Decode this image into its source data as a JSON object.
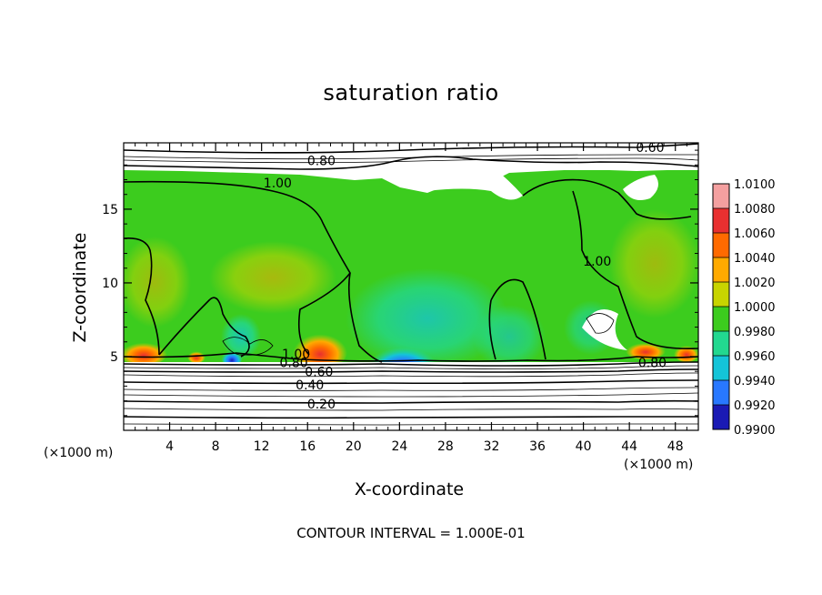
{
  "chart_data": {
    "type": "heatmap",
    "title": "saturation ratio",
    "xlabel": "X-coordinate",
    "ylabel": "Z-coordinate",
    "x_unit": "(×1000 m)",
    "y_unit": "(×1000 m)",
    "xlim": [
      0,
      50
    ],
    "ylim": [
      0,
      19.5
    ],
    "x_ticks": [
      4,
      8,
      12,
      16,
      20,
      24,
      28,
      32,
      36,
      40,
      44,
      48
    ],
    "y_ticks": [
      5,
      10,
      15
    ],
    "footer": "CONTOUR INTERVAL = 1.000E-01",
    "colorbar": {
      "levels": [
        "1.0100",
        "1.0080",
        "1.0060",
        "1.0040",
        "1.0020",
        "1.0000",
        "0.9980",
        "0.9960",
        "0.9940",
        "0.9920",
        "0.9900"
      ],
      "colors": [
        "#f4a0a0",
        "#e83030",
        "#ff6a00",
        "#ffaa00",
        "#c8d400",
        "#3ccc1e",
        "#22d890",
        "#14c4d8",
        "#2878ff",
        "#1a1ab4",
        "#7a1aa8"
      ]
    },
    "contour_labels": [
      {
        "text": "0.60",
        "x": 45.8,
        "y": 19.0
      },
      {
        "text": "0.80",
        "x": 17.2,
        "y": 18.1
      },
      {
        "text": "1.00",
        "x": 13.4,
        "y": 16.6
      },
      {
        "text": "1.00",
        "x": 41.2,
        "y": 11.3
      },
      {
        "text": "1.00",
        "x": 15.0,
        "y": 5.0
      },
      {
        "text": "0.80",
        "x": 14.8,
        "y": 4.4
      },
      {
        "text": "0.80",
        "x": 46.0,
        "y": 4.4
      },
      {
        "text": "0.60",
        "x": 17.0,
        "y": 3.8
      },
      {
        "text": "0.40",
        "x": 16.2,
        "y": 2.9
      },
      {
        "text": "0.20",
        "x": 17.2,
        "y": 1.6
      }
    ]
  }
}
